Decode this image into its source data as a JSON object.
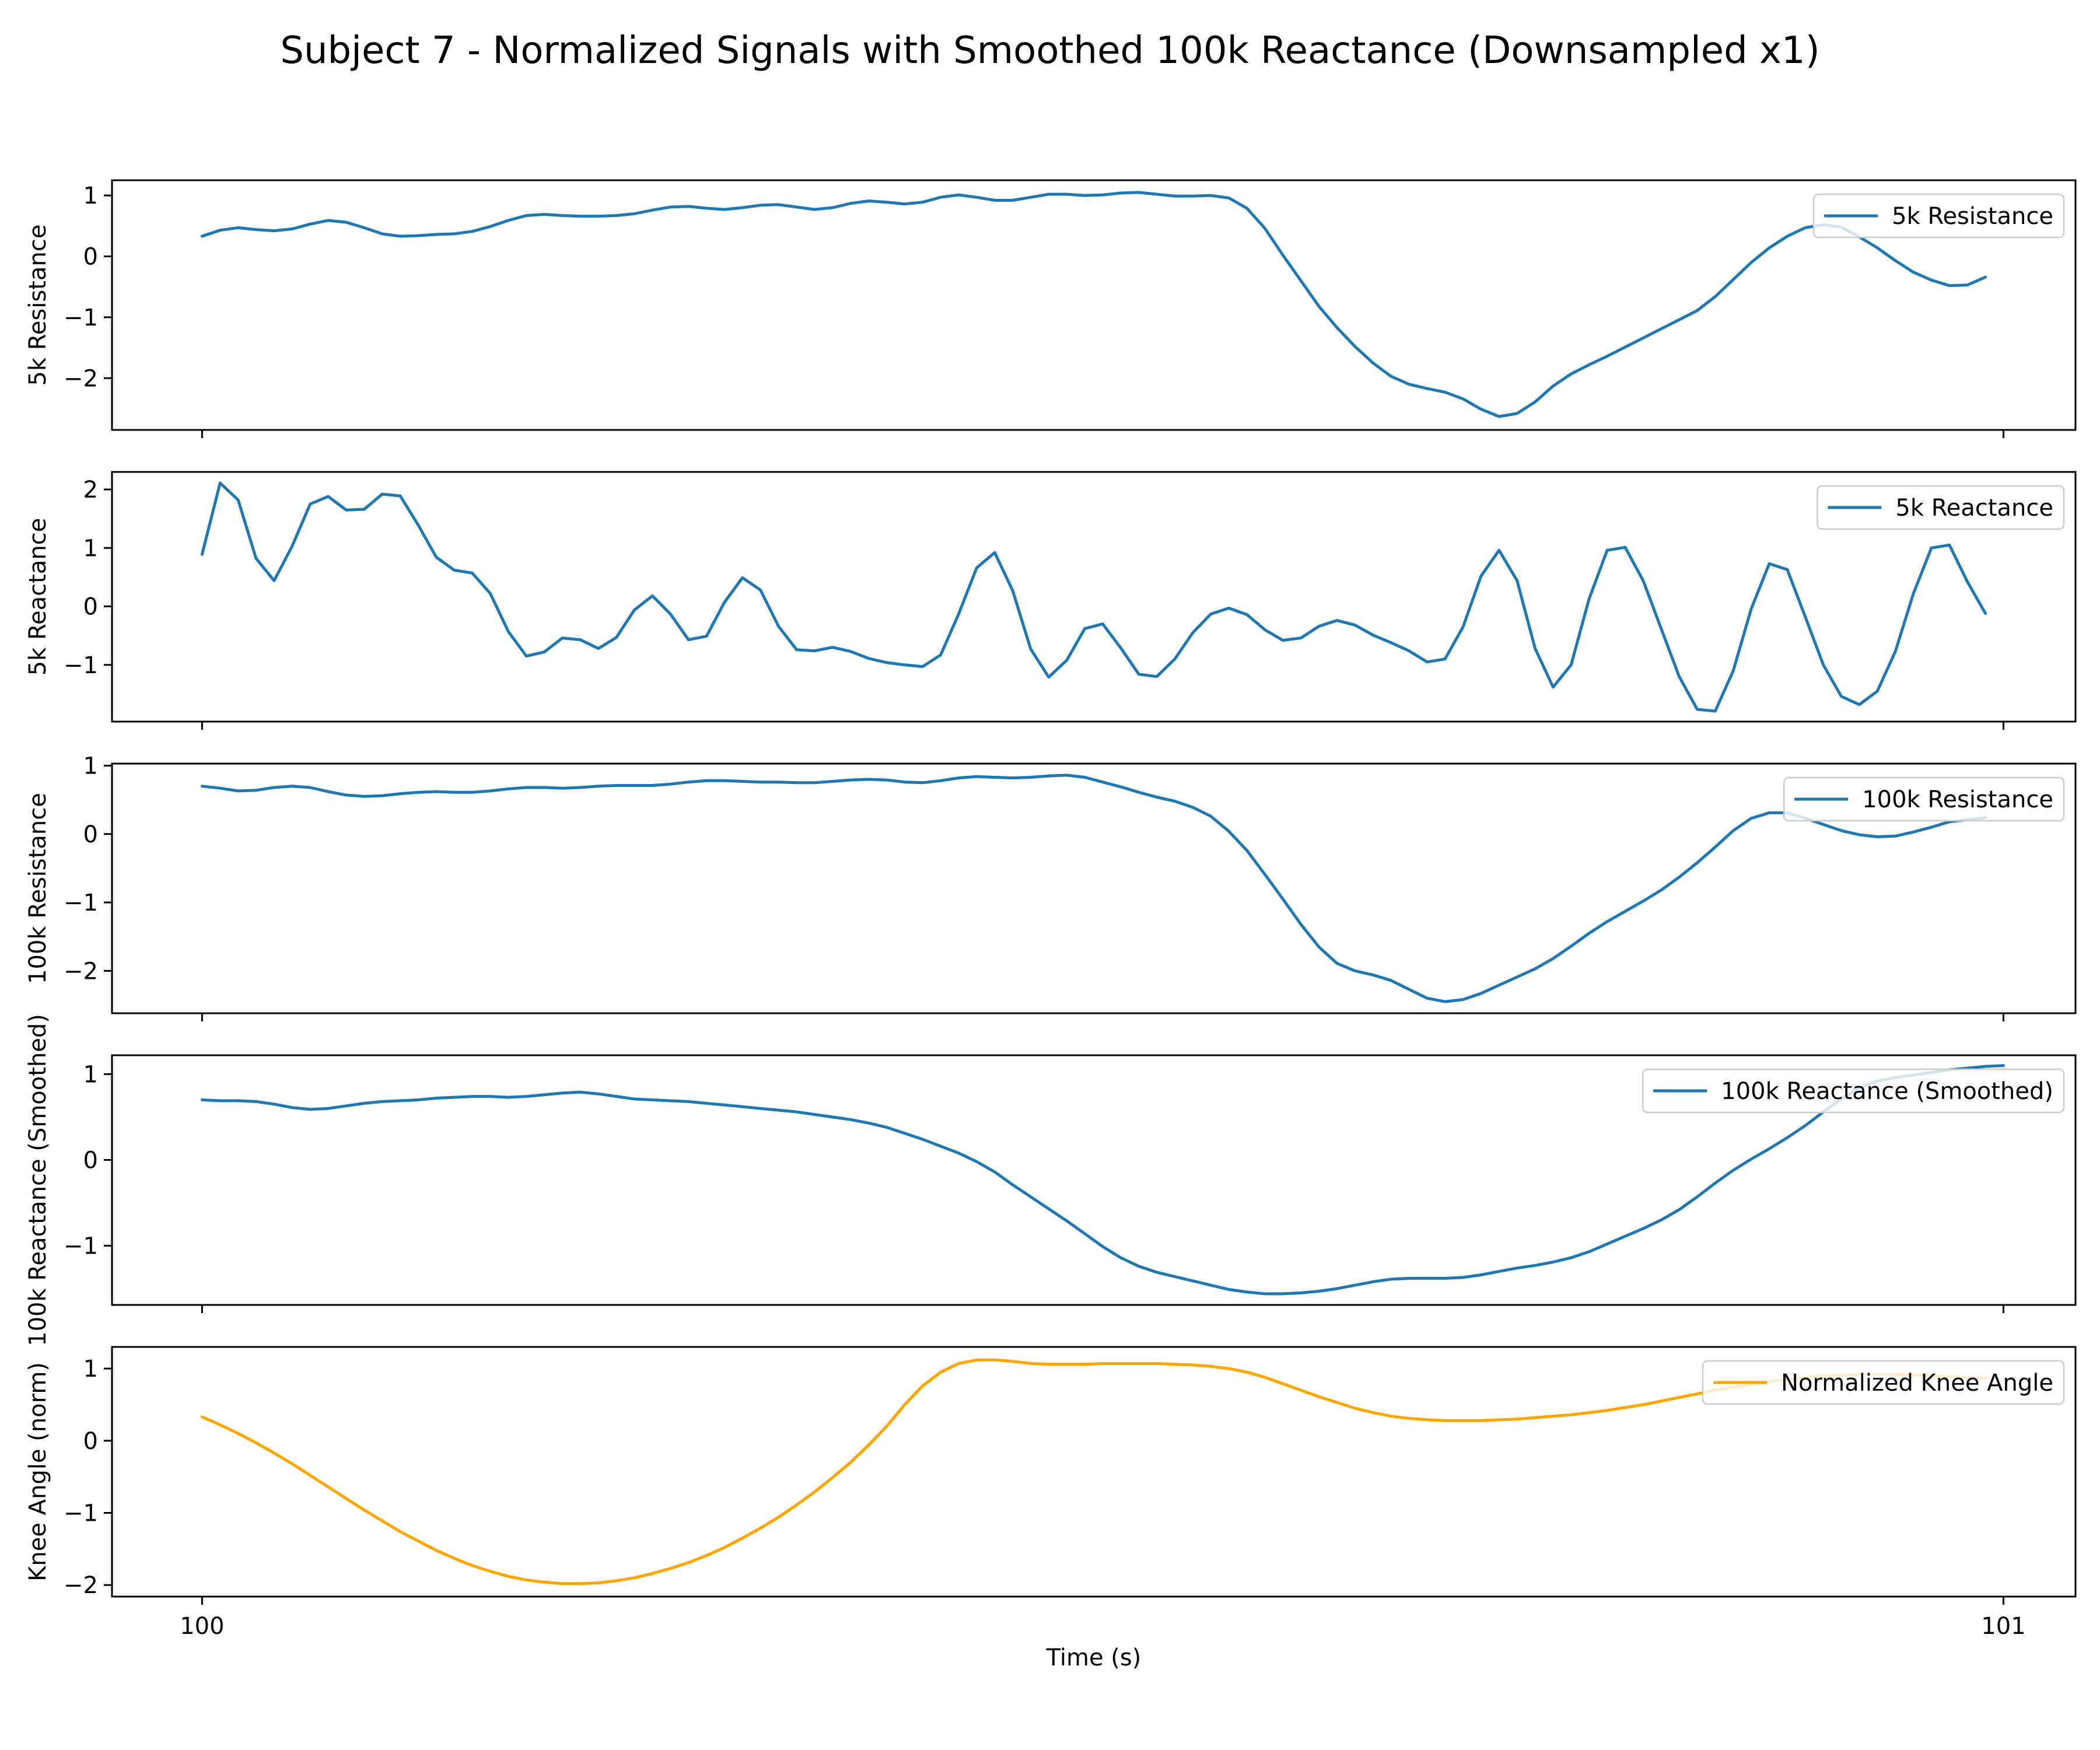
{
  "title": "Subject 7 - Normalized Signals with Smoothed 100k Reactance (Downsampled x1)",
  "xlabel": "Time (s)",
  "xticks": [
    100,
    101
  ],
  "colors": {
    "blue": "#1f77b4",
    "orange": "#ffa500"
  },
  "chart_data": [
    {
      "type": "line",
      "ylabel": "5k Resistance",
      "legend": "5k Resistance",
      "legend_position": "upper-right",
      "color": "#1f77b4",
      "ylim": [
        -2.85,
        1.25
      ],
      "yticks": [
        1,
        0,
        -1,
        -2
      ],
      "xlim": [
        99.95,
        101.04
      ],
      "x": [
        100.0,
        100.01,
        100.02,
        100.03,
        100.04,
        100.05,
        100.06,
        100.07,
        100.08,
        100.09,
        100.1,
        100.11,
        100.12,
        100.13,
        100.14,
        100.15,
        100.16,
        100.17,
        100.18,
        100.19,
        100.2,
        100.21,
        100.22,
        100.23,
        100.24,
        100.25,
        100.26,
        100.27,
        100.28,
        100.29,
        100.3,
        100.31,
        100.32,
        100.33,
        100.34,
        100.35,
        100.36,
        100.37,
        100.38,
        100.39,
        100.4,
        100.41,
        100.42,
        100.43,
        100.44,
        100.45,
        100.46,
        100.47,
        100.48,
        100.49,
        100.5,
        100.51,
        100.52,
        100.53,
        100.54,
        100.55,
        100.56,
        100.57,
        100.58,
        100.59,
        100.6,
        100.61,
        100.62,
        100.63,
        100.64,
        100.65,
        100.66,
        100.67,
        100.68,
        100.69,
        100.7,
        100.71,
        100.72,
        100.73,
        100.74,
        100.75,
        100.76,
        100.77,
        100.78,
        100.79,
        100.8,
        100.81,
        100.82,
        100.83,
        100.84,
        100.85,
        100.86,
        100.87,
        100.88,
        100.89,
        100.9,
        100.91,
        100.92,
        100.93,
        100.94,
        100.95,
        100.96,
        100.97,
        100.98,
        100.99
      ],
      "y": [
        0.33,
        0.43,
        0.47,
        0.44,
        0.42,
        0.45,
        0.53,
        0.59,
        0.56,
        0.47,
        0.37,
        0.33,
        0.34,
        0.36,
        0.37,
        0.41,
        0.49,
        0.59,
        0.67,
        0.69,
        0.67,
        0.66,
        0.66,
        0.67,
        0.7,
        0.76,
        0.81,
        0.82,
        0.79,
        0.77,
        0.8,
        0.84,
        0.85,
        0.81,
        0.77,
        0.8,
        0.87,
        0.91,
        0.89,
        0.86,
        0.89,
        0.97,
        1.01,
        0.97,
        0.92,
        0.92,
        0.97,
        1.02,
        1.02,
        1.0,
        1.01,
        1.04,
        1.05,
        1.02,
        0.99,
        0.99,
        1.0,
        0.96,
        0.79,
        0.46,
        0.02,
        -0.4,
        -0.82,
        -1.17,
        -1.48,
        -1.75,
        -1.97,
        -2.1,
        -2.17,
        -2.23,
        -2.34,
        -2.51,
        -2.63,
        -2.58,
        -2.39,
        -2.13,
        -1.93,
        -1.78,
        -1.64,
        -1.49,
        -1.34,
        -1.19,
        -1.04,
        -0.89,
        -0.66,
        -0.38,
        -0.1,
        0.14,
        0.33,
        0.47,
        0.52,
        0.48,
        0.32,
        0.14,
        -0.07,
        -0.26,
        -0.39,
        -0.48,
        -0.47,
        -0.34
      ]
    },
    {
      "type": "line",
      "ylabel": "5k Reactance",
      "legend": "5k Reactance",
      "legend_position": "upper-right",
      "color": "#1f77b4",
      "ylim": [
        -1.97,
        2.3
      ],
      "yticks": [
        2,
        1,
        0,
        -1
      ],
      "xlim": [
        99.95,
        101.04
      ],
      "x": [
        100.0,
        100.01,
        100.02,
        100.03,
        100.04,
        100.05,
        100.06,
        100.07,
        100.08,
        100.09,
        100.1,
        100.11,
        100.12,
        100.13,
        100.14,
        100.15,
        100.16,
        100.17,
        100.18,
        100.19,
        100.2,
        100.21,
        100.22,
        100.23,
        100.24,
        100.25,
        100.26,
        100.27,
        100.28,
        100.29,
        100.3,
        100.31,
        100.32,
        100.33,
        100.34,
        100.35,
        100.36,
        100.37,
        100.38,
        100.39,
        100.4,
        100.41,
        100.42,
        100.43,
        100.44,
        100.45,
        100.46,
        100.47,
        100.48,
        100.49,
        100.5,
        100.51,
        100.52,
        100.53,
        100.54,
        100.55,
        100.56,
        100.57,
        100.58,
        100.59,
        100.6,
        100.61,
        100.62,
        100.63,
        100.64,
        100.65,
        100.66,
        100.67,
        100.68,
        100.69,
        100.7,
        100.71,
        100.72,
        100.73,
        100.74,
        100.75,
        100.76,
        100.77,
        100.78,
        100.79,
        100.8,
        100.81,
        100.82,
        100.83,
        100.84,
        100.85,
        100.86,
        100.87,
        100.88,
        100.89,
        100.9,
        100.91,
        100.92,
        100.93,
        100.94,
        100.95,
        100.96,
        100.97,
        100.98,
        100.99
      ],
      "y": [
        0.89,
        2.11,
        1.82,
        0.82,
        0.44,
        1.03,
        1.75,
        1.88,
        1.65,
        1.66,
        1.92,
        1.89,
        1.39,
        0.84,
        0.62,
        0.57,
        0.22,
        -0.43,
        -0.85,
        -0.78,
        -0.54,
        -0.57,
        -0.72,
        -0.53,
        -0.06,
        0.18,
        -0.13,
        -0.57,
        -0.51,
        0.07,
        0.49,
        0.28,
        -0.34,
        -0.74,
        -0.76,
        -0.7,
        -0.77,
        -0.89,
        -0.96,
        -1.0,
        -1.03,
        -0.83,
        -0.13,
        0.66,
        0.92,
        0.27,
        -0.73,
        -1.21,
        -0.92,
        -0.38,
        -0.3,
        -0.71,
        -1.16,
        -1.2,
        -0.9,
        -0.45,
        -0.13,
        -0.03,
        -0.14,
        -0.4,
        -0.58,
        -0.54,
        -0.34,
        -0.24,
        -0.32,
        -0.49,
        -0.62,
        -0.76,
        -0.95,
        -0.9,
        -0.35,
        0.52,
        0.96,
        0.44,
        -0.72,
        -1.38,
        -1.0,
        0.13,
        0.96,
        1.01,
        0.44,
        -0.38,
        -1.2,
        -1.76,
        -1.79,
        -1.1,
        -0.04,
        0.73,
        0.63,
        -0.18,
        -1.0,
        -1.54,
        -1.68,
        -1.45,
        -0.77,
        0.22,
        1.0,
        1.05,
        0.42,
        -0.12
      ]
    },
    {
      "type": "line",
      "ylabel": "100k Resistance",
      "legend": "100k Resistance",
      "legend_position": "upper-right",
      "color": "#1f77b4",
      "ylim": [
        -2.62,
        1.03
      ],
      "yticks": [
        1,
        0,
        -1,
        -2
      ],
      "xlim": [
        99.95,
        101.04
      ],
      "x": [
        100.0,
        100.01,
        100.02,
        100.03,
        100.04,
        100.05,
        100.06,
        100.07,
        100.08,
        100.09,
        100.1,
        100.11,
        100.12,
        100.13,
        100.14,
        100.15,
        100.16,
        100.17,
        100.18,
        100.19,
        100.2,
        100.21,
        100.22,
        100.23,
        100.24,
        100.25,
        100.26,
        100.27,
        100.28,
        100.29,
        100.3,
        100.31,
        100.32,
        100.33,
        100.34,
        100.35,
        100.36,
        100.37,
        100.38,
        100.39,
        100.4,
        100.41,
        100.42,
        100.43,
        100.44,
        100.45,
        100.46,
        100.47,
        100.48,
        100.49,
        100.5,
        100.51,
        100.52,
        100.53,
        100.54,
        100.55,
        100.56,
        100.57,
        100.58,
        100.59,
        100.6,
        100.61,
        100.62,
        100.63,
        100.64,
        100.65,
        100.66,
        100.67,
        100.68,
        100.69,
        100.7,
        100.71,
        100.72,
        100.73,
        100.74,
        100.75,
        100.76,
        100.77,
        100.78,
        100.79,
        100.8,
        100.81,
        100.82,
        100.83,
        100.84,
        100.85,
        100.86,
        100.87,
        100.88,
        100.89,
        100.9,
        100.91,
        100.92,
        100.93,
        100.94,
        100.95,
        100.96,
        100.97,
        100.98,
        100.99
      ],
      "y": [
        0.7,
        0.67,
        0.63,
        0.64,
        0.68,
        0.7,
        0.68,
        0.62,
        0.57,
        0.55,
        0.56,
        0.59,
        0.61,
        0.62,
        0.61,
        0.61,
        0.63,
        0.66,
        0.68,
        0.68,
        0.67,
        0.68,
        0.7,
        0.71,
        0.71,
        0.71,
        0.73,
        0.76,
        0.78,
        0.78,
        0.77,
        0.76,
        0.76,
        0.75,
        0.75,
        0.77,
        0.79,
        0.8,
        0.79,
        0.76,
        0.75,
        0.78,
        0.82,
        0.84,
        0.83,
        0.82,
        0.83,
        0.85,
        0.86,
        0.83,
        0.76,
        0.69,
        0.61,
        0.54,
        0.48,
        0.39,
        0.26,
        0.04,
        -0.24,
        -0.59,
        -0.95,
        -1.32,
        -1.65,
        -1.89,
        -2.0,
        -2.06,
        -2.14,
        -2.27,
        -2.4,
        -2.45,
        -2.42,
        -2.33,
        -2.21,
        -2.09,
        -1.97,
        -1.82,
        -1.64,
        -1.45,
        -1.28,
        -1.13,
        -0.98,
        -0.82,
        -0.63,
        -0.42,
        -0.19,
        0.05,
        0.23,
        0.31,
        0.31,
        0.23,
        0.14,
        0.05,
        -0.01,
        -0.04,
        -0.03,
        0.03,
        0.1,
        0.18,
        0.21,
        0.24
      ]
    },
    {
      "type": "line",
      "ylabel": "100k Reactance (Smoothed)",
      "legend": "100k Reactance (Smoothed)",
      "legend_position": "upper-right",
      "color": "#1f77b4",
      "ylim": [
        -1.69,
        1.22
      ],
      "yticks": [
        1,
        0,
        -1
      ],
      "xlim": [
        99.95,
        101.04
      ],
      "x": [
        100.0,
        100.01,
        100.02,
        100.03,
        100.04,
        100.05,
        100.06,
        100.07,
        100.08,
        100.09,
        100.1,
        100.11,
        100.12,
        100.13,
        100.14,
        100.15,
        100.16,
        100.17,
        100.18,
        100.19,
        100.2,
        100.21,
        100.22,
        100.23,
        100.24,
        100.25,
        100.26,
        100.27,
        100.28,
        100.29,
        100.3,
        100.31,
        100.32,
        100.33,
        100.34,
        100.35,
        100.36,
        100.37,
        100.38,
        100.39,
        100.4,
        100.41,
        100.42,
        100.43,
        100.44,
        100.45,
        100.46,
        100.47,
        100.48,
        100.49,
        100.5,
        100.51,
        100.52,
        100.53,
        100.54,
        100.55,
        100.56,
        100.57,
        100.58,
        100.59,
        100.6,
        100.61,
        100.62,
        100.63,
        100.64,
        100.65,
        100.66,
        100.67,
        100.68,
        100.69,
        100.7,
        100.71,
        100.72,
        100.73,
        100.74,
        100.75,
        100.76,
        100.77,
        100.78,
        100.79,
        100.8,
        100.81,
        100.82,
        100.83,
        100.84,
        100.85,
        100.86,
        100.87,
        100.88,
        100.89,
        100.9,
        100.91,
        100.92,
        100.93,
        100.94,
        100.95,
        100.96,
        100.97,
        100.98,
        100.99,
        101.0
      ],
      "y": [
        0.7,
        0.69,
        0.69,
        0.68,
        0.65,
        0.61,
        0.59,
        0.6,
        0.63,
        0.66,
        0.68,
        0.69,
        0.7,
        0.72,
        0.73,
        0.74,
        0.74,
        0.73,
        0.74,
        0.76,
        0.78,
        0.79,
        0.77,
        0.74,
        0.71,
        0.7,
        0.69,
        0.68,
        0.66,
        0.64,
        0.62,
        0.6,
        0.58,
        0.56,
        0.53,
        0.5,
        0.47,
        0.43,
        0.38,
        0.31,
        0.24,
        0.16,
        0.08,
        -0.02,
        -0.14,
        -0.29,
        -0.43,
        -0.57,
        -0.71,
        -0.86,
        -1.01,
        -1.14,
        -1.24,
        -1.31,
        -1.36,
        -1.41,
        -1.46,
        -1.51,
        -1.54,
        -1.56,
        -1.56,
        -1.55,
        -1.53,
        -1.5,
        -1.46,
        -1.42,
        -1.39,
        -1.38,
        -1.38,
        -1.38,
        -1.37,
        -1.34,
        -1.3,
        -1.26,
        -1.23,
        -1.19,
        -1.14,
        -1.07,
        -0.98,
        -0.89,
        -0.8,
        -0.7,
        -0.58,
        -0.43,
        -0.27,
        -0.12,
        0.01,
        0.13,
        0.26,
        0.4,
        0.56,
        0.71,
        0.84,
        0.92,
        0.96,
        0.99,
        1.02,
        1.05,
        1.07,
        1.09,
        1.1
      ]
    },
    {
      "type": "line",
      "ylabel": "Knee Angle (norm)",
      "legend": "Normalized Knee Angle",
      "legend_position": "upper-right",
      "color": "#ffa500",
      "ylim": [
        -2.16,
        1.3
      ],
      "yticks": [
        1,
        0,
        -1,
        -2
      ],
      "xlim": [
        99.95,
        101.04
      ],
      "x": [
        100.0,
        100.01,
        100.02,
        100.03,
        100.04,
        100.05,
        100.06,
        100.07,
        100.08,
        100.09,
        100.1,
        100.11,
        100.12,
        100.13,
        100.14,
        100.15,
        100.16,
        100.17,
        100.18,
        100.19,
        100.2,
        100.21,
        100.22,
        100.23,
        100.24,
        100.25,
        100.26,
        100.27,
        100.28,
        100.29,
        100.3,
        100.31,
        100.32,
        100.33,
        100.34,
        100.35,
        100.36,
        100.37,
        100.38,
        100.39,
        100.4,
        100.41,
        100.42,
        100.43,
        100.44,
        100.45,
        100.46,
        100.47,
        100.48,
        100.49,
        100.5,
        100.51,
        100.52,
        100.53,
        100.54,
        100.55,
        100.56,
        100.57,
        100.58,
        100.59,
        100.6,
        100.61,
        100.62,
        100.63,
        100.64,
        100.65,
        100.66,
        100.67,
        100.68,
        100.69,
        100.7,
        100.71,
        100.72,
        100.73,
        100.74,
        100.75,
        100.76,
        100.77,
        100.78,
        100.79,
        100.8,
        100.81,
        100.82,
        100.83,
        100.84,
        100.85,
        100.86,
        100.87,
        100.88,
        100.89,
        100.9,
        100.91,
        100.92,
        100.93,
        100.94,
        100.95,
        100.96,
        100.97,
        100.98,
        100.99
      ],
      "y": [
        0.33,
        0.22,
        0.1,
        -0.03,
        -0.17,
        -0.32,
        -0.48,
        -0.64,
        -0.8,
        -0.96,
        -1.11,
        -1.26,
        -1.39,
        -1.52,
        -1.63,
        -1.73,
        -1.81,
        -1.88,
        -1.93,
        -1.96,
        -1.98,
        -1.98,
        -1.97,
        -1.94,
        -1.9,
        -1.84,
        -1.77,
        -1.69,
        -1.59,
        -1.48,
        -1.35,
        -1.21,
        -1.06,
        -0.89,
        -0.71,
        -0.51,
        -0.3,
        -0.06,
        0.2,
        0.5,
        0.76,
        0.95,
        1.07,
        1.12,
        1.12,
        1.1,
        1.07,
        1.06,
        1.06,
        1.06,
        1.07,
        1.07,
        1.07,
        1.07,
        1.06,
        1.05,
        1.03,
        1.0,
        0.95,
        0.88,
        0.79,
        0.7,
        0.61,
        0.53,
        0.45,
        0.39,
        0.34,
        0.31,
        0.29,
        0.28,
        0.28,
        0.28,
        0.29,
        0.3,
        0.32,
        0.34,
        0.36,
        0.39,
        0.42,
        0.46,
        0.5,
        0.55,
        0.6,
        0.65,
        0.7,
        0.74,
        0.78,
        0.82,
        0.85,
        0.88,
        0.9,
        0.91,
        0.92,
        0.92,
        0.92,
        0.91,
        0.9,
        0.89,
        0.88,
        0.87
      ]
    }
  ]
}
